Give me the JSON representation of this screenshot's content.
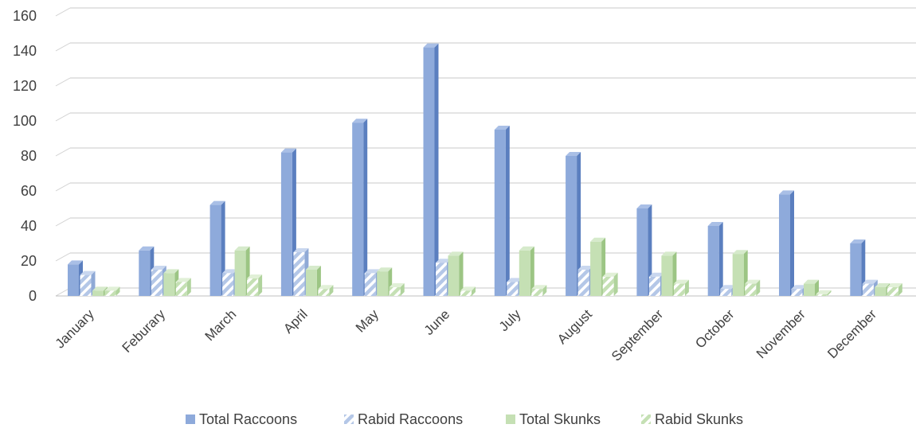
{
  "chart_data": {
    "type": "bar",
    "title": "",
    "xlabel": "",
    "ylabel": "",
    "ylim": [
      0,
      160
    ],
    "yticks": [
      0,
      20,
      40,
      60,
      80,
      100,
      120,
      140,
      160
    ],
    "grid": true,
    "legend_position": "bottom",
    "categories": [
      "January",
      "Feburary",
      "March",
      "April",
      "May",
      "June",
      "July",
      "August",
      "September",
      "October",
      "November",
      "December"
    ],
    "series": [
      {
        "name": "Total Raccoons",
        "color": "#8eaadb",
        "pattern": "solid",
        "values": [
          18,
          26,
          52,
          82,
          99,
          142,
          95,
          80,
          50,
          40,
          58,
          30
        ]
      },
      {
        "name": "Rabid Raccoons",
        "color": "#b4c7e7",
        "pattern": "diagonal-stripes",
        "values": [
          12,
          15,
          13,
          25,
          13,
          19,
          8,
          15,
          11,
          4,
          4,
          7
        ]
      },
      {
        "name": "Total Skunks",
        "color": "#c5e0b4",
        "pattern": "solid",
        "values": [
          3,
          13,
          26,
          15,
          14,
          23,
          26,
          31,
          23,
          24,
          7,
          5
        ]
      },
      {
        "name": "Rabid Skunks",
        "color": "#d5e8c8",
        "pattern": "diagonal-stripes",
        "values": [
          3,
          8,
          10,
          4,
          5,
          3,
          4,
          11,
          7,
          7,
          1,
          5
        ]
      }
    ]
  }
}
